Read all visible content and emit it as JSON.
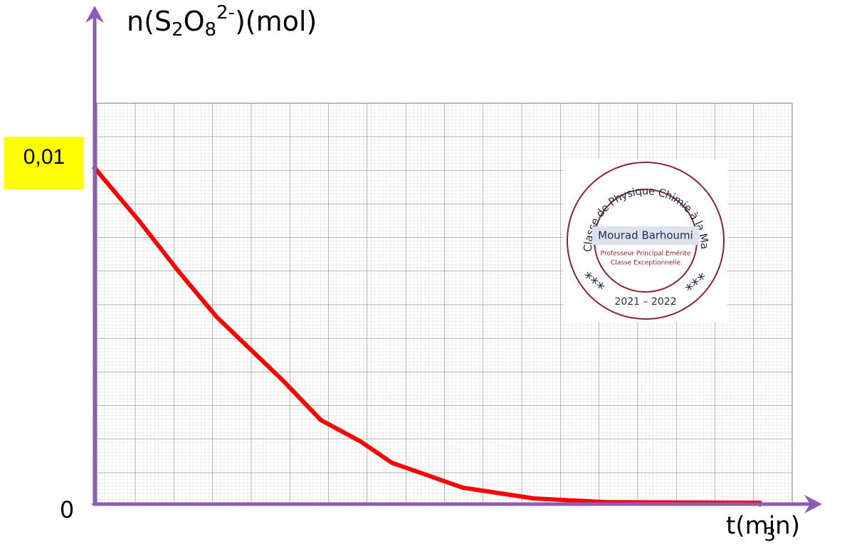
{
  "chart_data": {
    "type": "line",
    "ylabel_parts": [
      "n(S",
      "2",
      "O",
      "8",
      "2-",
      ")(mol)"
    ],
    "xlabel": "t(min)",
    "x": [
      0,
      0.2,
      0.375,
      0.55,
      0.7,
      0.85,
      1.02,
      1.2,
      1.34,
      1.66,
      1.98,
      2.3,
      3.0
    ],
    "series": [
      {
        "color": "#ff0000",
        "values": [
          0.01,
          0.00843,
          0.00695,
          0.00557,
          0.00462,
          0.00367,
          0.0025,
          0.00186,
          0.00123,
          0.00049,
          0.00017,
          6e-05,
          4e-05
        ]
      }
    ],
    "xlim": [
      0,
      3.2
    ],
    "ylim": [
      0,
      0.0118
    ],
    "xticks": [
      3
    ],
    "yticks": [
      0,
      {
        "value": 0.01,
        "label": "0,01"
      }
    ],
    "grid": true
  },
  "stamp": {
    "arc_text": "Ma Classe de Physique Chimie à la Maison",
    "name": "Mourad Barhoumi",
    "line1": "Professeur Principal Emérite",
    "line2": "Classe Exceptionnelle",
    "years": "2021 – 2022",
    "stars": "***"
  }
}
